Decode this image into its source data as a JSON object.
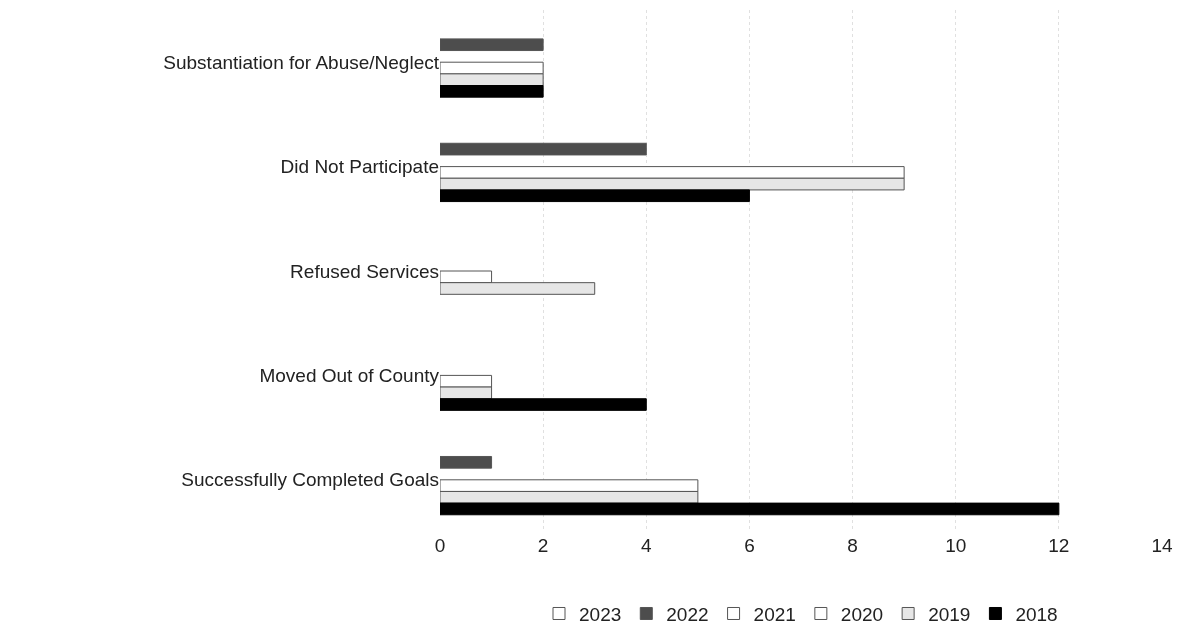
{
  "chart_data": {
    "type": "bar",
    "orientation": "horizontal",
    "categories": [
      "Substantiation for Abuse/Neglect",
      "Did Not Participate",
      "Refused Services",
      "Moved Out of County",
      "Successfully Completed Goals"
    ],
    "series": [
      {
        "name": "2023",
        "color": "#ffffff",
        "values": [
          null,
          null,
          null,
          null,
          null
        ]
      },
      {
        "name": "2022",
        "color": "#4d4d4d",
        "values": [
          2,
          4,
          null,
          null,
          1
        ]
      },
      {
        "name": "2021",
        "color": "#ffffff",
        "values": [
          null,
          null,
          null,
          null,
          null
        ]
      },
      {
        "name": "2020",
        "color": "#ffffff",
        "values": [
          2,
          9,
          1,
          1,
          5
        ]
      },
      {
        "name": "2019",
        "color": "#e6e6e6",
        "values": [
          2,
          9,
          3,
          1,
          5
        ]
      },
      {
        "name": "2018",
        "color": "#000000",
        "values": [
          2,
          6,
          null,
          4,
          12
        ]
      }
    ],
    "xlim": [
      0,
      14
    ],
    "xticks": [
      0,
      2,
      4,
      6,
      8,
      10,
      12,
      14
    ],
    "grid": "x",
    "legend": "bottom"
  }
}
